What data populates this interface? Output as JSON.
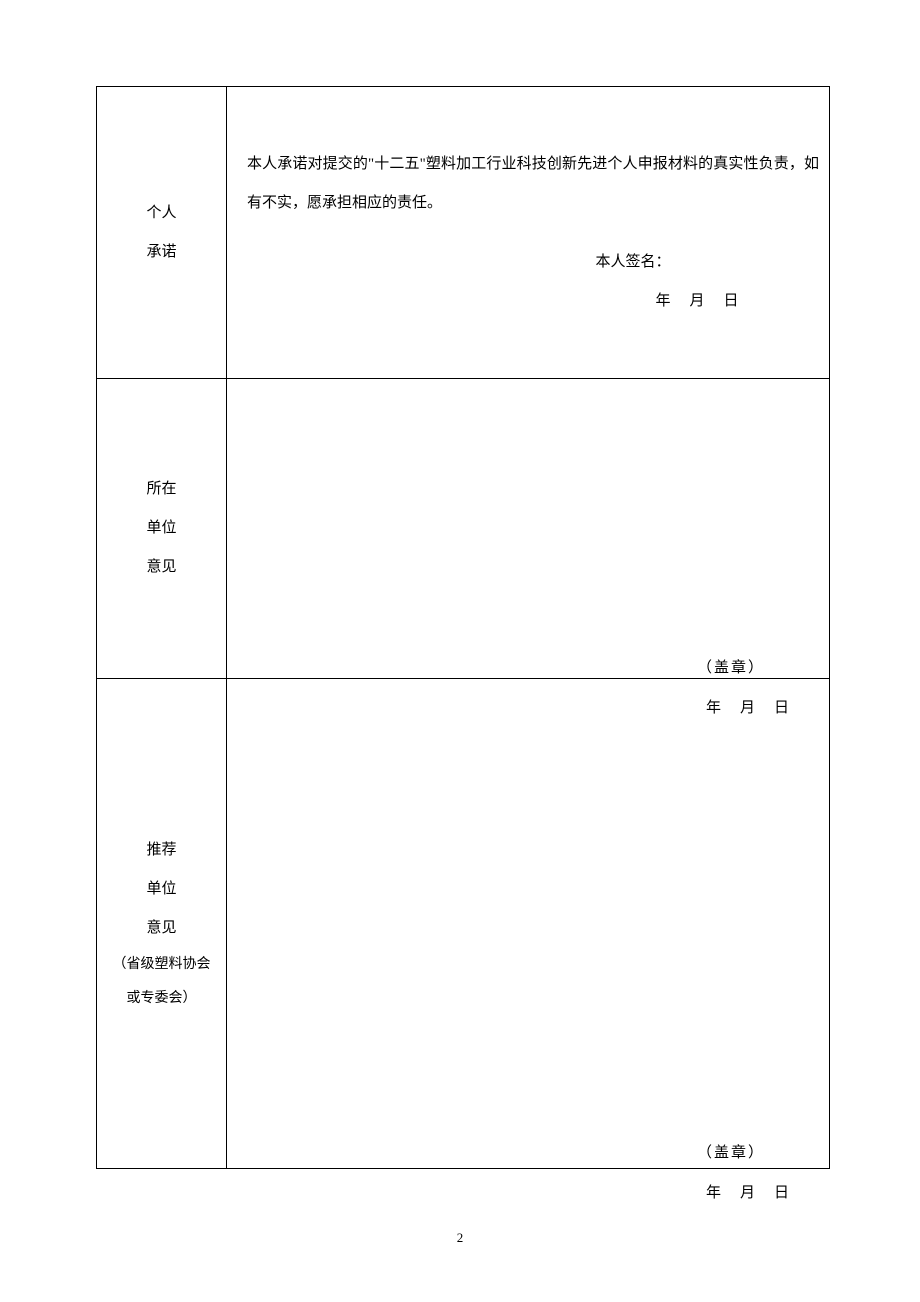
{
  "rows": [
    {
      "label_lines": [
        "个人",
        "承诺"
      ],
      "commitment": "本人承诺对提交的\"十二五\"塑料加工行业科技创新先进个人申报材料的真实性负责，如有不实，愿承担相应的责任。",
      "signature_label": "本人签名：",
      "date_label": "年　月　日"
    },
    {
      "label_lines": [
        "所在",
        "单位",
        "意见"
      ],
      "stamp_label": "（盖章）",
      "date_label": "年　月　日"
    },
    {
      "label_lines": [
        "推荐",
        "单位",
        "意见"
      ],
      "sublabel_lines": [
        "（省级塑料协会",
        "或专委会）"
      ],
      "stamp_label": "（盖章）",
      "date_label": "年　月　日"
    }
  ],
  "page_number": "2"
}
